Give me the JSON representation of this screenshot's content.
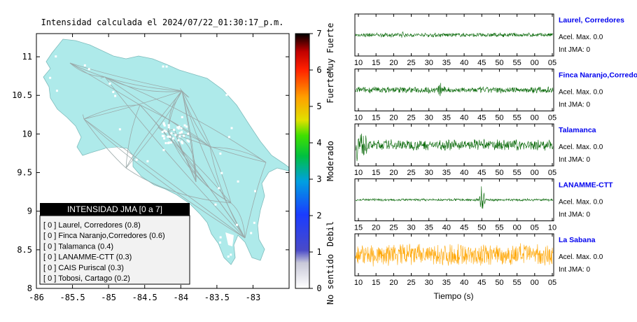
{
  "title": "Intensidad calculada el 2024/07/22_01:30:17_p.m.",
  "colors": {
    "land": "#aeeaea",
    "road": "#9aa8a8",
    "station": "#ffffff",
    "wave_green": "#006400",
    "wave_orange": "#ffa500",
    "station_name": "#0000ee",
    "legend_header_bg": "#000000",
    "legend_bg": "#f2f2f2"
  },
  "map": {
    "x_ticks": [
      "-86",
      "-85.5",
      "-85",
      "-84.5",
      "-84",
      "-83.5",
      "-83"
    ],
    "y_ticks": [
      "11",
      "10.5",
      "10",
      "9.5",
      "9",
      "8.5",
      "8"
    ],
    "xlim": [
      -86,
      -82.5
    ],
    "ylim": [
      8,
      11.3
    ]
  },
  "colorbar": {
    "ticks": [
      "0",
      "1",
      "2",
      "3",
      "4",
      "5",
      "6",
      "7"
    ],
    "labels": [
      "No sentido",
      "Debil",
      "Moderado",
      "Fuerte",
      "Muy Fuerte"
    ],
    "range": [
      0,
      7
    ]
  },
  "legend": {
    "title": "INTENSIDAD JMA [0 a 7]",
    "items": [
      "[ 0 ]  Laurel, Corredores (0.8)",
      "[ 0 ]  Finca Naranjo,Corredores (0.6)",
      "[ 0 ]  Talamanca (0.4)",
      "[ 0 ]  LANAMME-CTT (0.3)",
      "[ 0 ]  CAIS Puriscal (0.3)",
      "[ 0 ]  Tobosi, Cartago (0.2)"
    ]
  },
  "chart_data": {
    "type": "line",
    "xlabel": "Tiempo (s)",
    "panels": [
      {
        "name": "Laurel, Corredores",
        "accel": "Acel. Max. 0.0",
        "jma": "Int JMA: 0",
        "ticks": [
          "10",
          "15",
          "20",
          "25",
          "30",
          "35",
          "40",
          "45",
          "50",
          "55",
          "00",
          "05"
        ],
        "color": "#006400",
        "amp": 0.12,
        "spike_at": 0.24,
        "spike_amp": 0.2
      },
      {
        "name": "Finca Naranjo,Corredores",
        "accel": "Acel. Max. 0.0",
        "jma": "Int JMA: 0",
        "ticks": [
          "10",
          "15",
          "20",
          "25",
          "30",
          "35",
          "40",
          "45",
          "50",
          "55",
          "00",
          "05"
        ],
        "color": "#006400",
        "amp": 0.18,
        "spike_at": 0.43,
        "spike_amp": 0.45
      },
      {
        "name": "Talamanca",
        "accel": "Acel. Max. 0.0",
        "jma": "Int JMA: 0",
        "ticks": [
          "10",
          "15",
          "20",
          "25",
          "30",
          "35",
          "40",
          "45",
          "50",
          "55",
          "00",
          "05"
        ],
        "color": "#006400",
        "amp": 0.3,
        "spike_at": 0.01,
        "spike_amp": 0.9
      },
      {
        "name": "LANAMME-CTT",
        "accel": "Acel. Max. 0.0",
        "jma": "Int JMA: 0",
        "ticks": [
          "15",
          "20",
          "25",
          "30",
          "35",
          "40",
          "45",
          "50",
          "55",
          "00",
          "05",
          "10"
        ],
        "color": "#006400",
        "amp": 0.07,
        "spike_at": 0.64,
        "spike_amp": 0.85
      },
      {
        "name": "La Sabana",
        "accel": "Acel. Max. 0.0",
        "jma": "Int JMA: 0",
        "ticks": [
          "10",
          "15",
          "20",
          "25",
          "30",
          "35",
          "40",
          "45",
          "50",
          "55",
          "00",
          "05"
        ],
        "color": "#ffa500",
        "amp": 0.65,
        "spike_at": -1,
        "spike_amp": 0
      }
    ]
  }
}
